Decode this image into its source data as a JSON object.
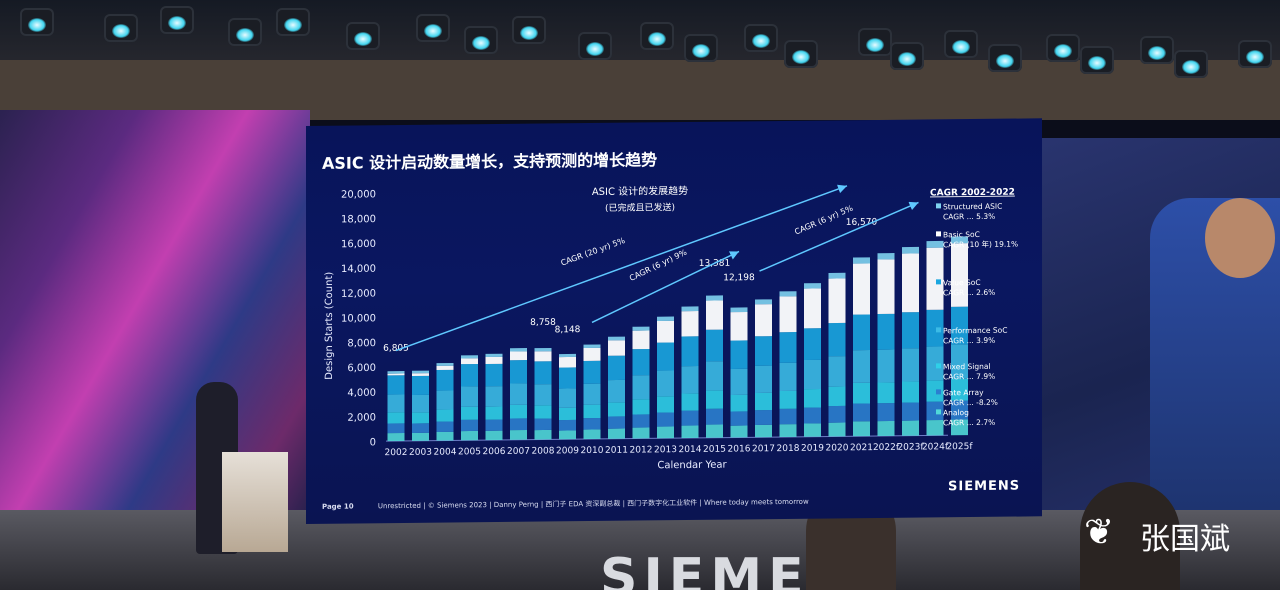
{
  "slide": {
    "title": "ASIC 设计启动数量增长，支持预测的增长趋势",
    "page": "Page 10",
    "footer": "Unrestricted | © Siemens 2023 | Danny Perng | 西门子 EDA 资深副总裁 | 西门子数字化工业软件 | Where today meets tomorrow",
    "brand": "SIEMENS"
  },
  "scene": {
    "stage_logo": "SIEMENS",
    "watermark": "张国斌"
  },
  "chart_data": {
    "type": "bar",
    "stacked": true,
    "title": "ASIC 设计的发展趋势",
    "subtitle": "(已完成且已发送)",
    "xlabel": "Calendar Year",
    "ylabel": "Design Starts (Count)",
    "ylim": [
      0,
      20000
    ],
    "yticks": [
      "0",
      "2,000",
      "4,000",
      "6,000",
      "8,000",
      "10,000",
      "12,000",
      "14,000",
      "16,000",
      "18,000",
      "20,000"
    ],
    "categories": [
      "2002",
      "2003",
      "2004",
      "2005",
      "2006",
      "2007",
      "2008",
      "2009",
      "2010",
      "2011",
      "2012",
      "2013",
      "2014",
      "2015",
      "2016",
      "2017",
      "2018",
      "2019",
      "2020",
      "2021",
      "2022f",
      "2023f",
      "2024f",
      "2025f"
    ],
    "totals": [
      6805,
      6800,
      7500,
      8200,
      8300,
      8800,
      8758,
      8148,
      9000,
      9700,
      10600,
      11500,
      12400,
      13381,
      12198,
      12900,
      13600,
      14300,
      15200,
      16570,
      16900,
      17400,
      17900,
      18300
    ],
    "data_labels": [
      {
        "category": "2002",
        "text": "6,805"
      },
      {
        "category": "2008",
        "text": "8,758"
      },
      {
        "category": "2009",
        "text": "8,148"
      },
      {
        "category": "2015",
        "text": "13,381"
      },
      {
        "category": "2016",
        "text": "12,198"
      },
      {
        "category": "2021",
        "text": "16,570"
      }
    ],
    "annotations": [
      {
        "text": "CAGR (20 yr) 5%",
        "from": "2002",
        "to": "2015"
      },
      {
        "text": "CAGR (6 yr) 9%",
        "from": "2009",
        "to": "2014"
      },
      {
        "text": "CAGR (6 yr) 5%",
        "from": "2016",
        "to": "2021"
      }
    ],
    "legend_title": "CAGR 2002-2022",
    "legend_placement": "right",
    "series": [
      {
        "name": "Structured ASIC",
        "cagr": "CAGR ... 5.3%",
        "color": "#7fd3f0"
      },
      {
        "name": "Basic SoC",
        "cagr": "CAGR (10 年) 19.1%",
        "color": "#ffffff"
      },
      {
        "name": "Value SoC",
        "cagr": "CAGR ... 2.6%",
        "color": "#1aa6e0"
      },
      {
        "name": "Performance SoC",
        "cagr": "CAGR ... 3.9%",
        "color": "#3bbbe6"
      },
      {
        "name": "Mixed Signal",
        "cagr": "CAGR ... 7.9%",
        "color": "#2fd0e8"
      },
      {
        "name": "Gate Array",
        "cagr": "CAGR ... -8.2%",
        "color": "#2b7fd0"
      },
      {
        "name": "Analog",
        "cagr": "CAGR ... 2.7%",
        "color": "#50d8d8"
      }
    ]
  }
}
